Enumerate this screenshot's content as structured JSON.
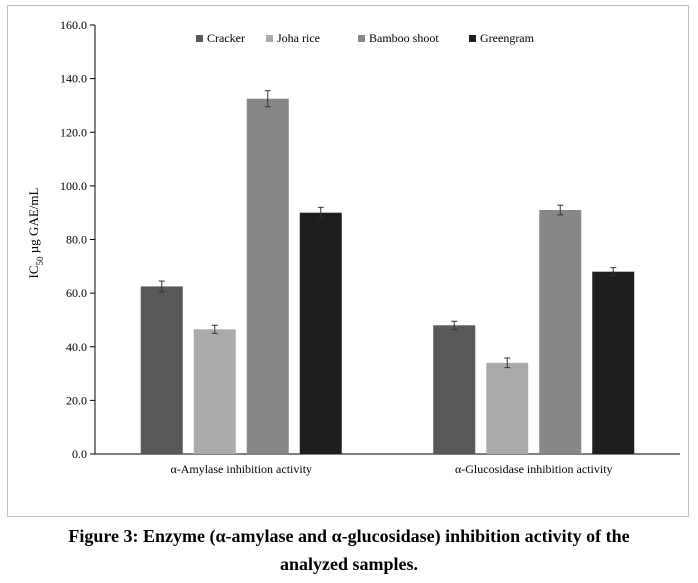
{
  "chart_data": {
    "type": "bar",
    "categories": [
      "α-Amylase inhibition activity",
      "α-Glucosidase inhibition activity"
    ],
    "series": [
      {
        "name": "Cracker",
        "color": "#595959",
        "values": [
          62.5,
          48.0
        ],
        "errors": [
          2.0,
          1.5
        ]
      },
      {
        "name": "Joha rice",
        "color": "#aaaaaa",
        "values": [
          46.5,
          34.0
        ],
        "errors": [
          1.5,
          1.8
        ]
      },
      {
        "name": "Bamboo shoot",
        "color": "#878787",
        "values": [
          132.5,
          91.0
        ],
        "errors": [
          3.0,
          1.8
        ]
      },
      {
        "name": "Greengram",
        "color": "#1e1e1e",
        "values": [
          90.0,
          68.0
        ],
        "errors": [
          2.0,
          1.5
        ]
      }
    ],
    "ylabel_main": "IC",
    "ylabel_sub": "50",
    "ylabel_rest": " µg GAE/mL",
    "ylim": [
      0,
      160
    ],
    "yticks": [
      "0.0",
      "20.0",
      "40.0",
      "60.0",
      "80.0",
      "100.0",
      "120.0",
      "140.0",
      "160.0"
    ],
    "grid": false,
    "legend_position": "top"
  },
  "caption": {
    "line1": "Figure 3: Enzyme (α-amylase and α-glucosidase) inhibition activity of the",
    "line2": "analyzed samples."
  }
}
